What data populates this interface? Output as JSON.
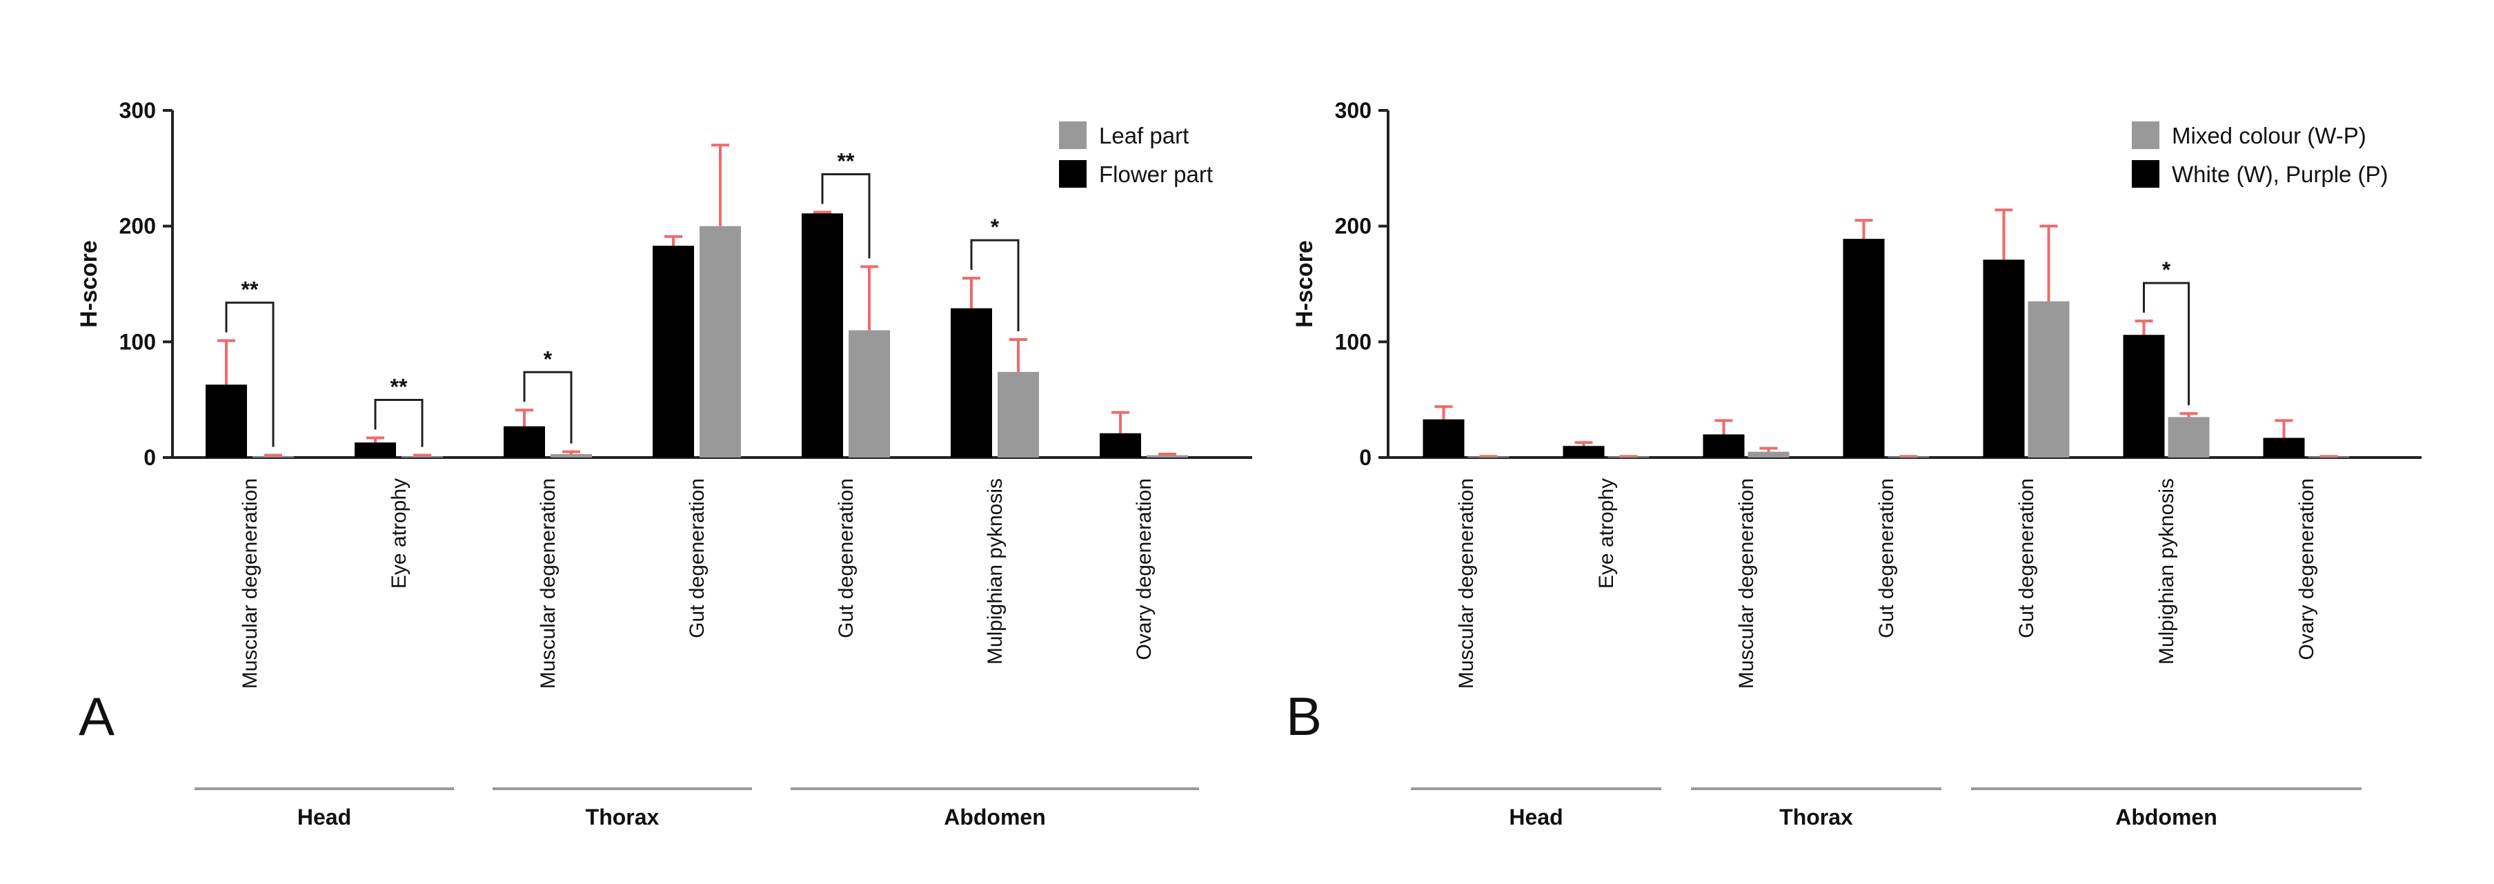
{
  "chart_data": [
    {
      "panel_label": "A",
      "type": "bar",
      "ylabel": "H-score",
      "ylim": [
        0,
        300
      ],
      "yticks": [
        "0",
        "100",
        "200",
        "300"
      ],
      "categories": [
        "Muscular degeneration",
        "Eye atrophy",
        "Muscular degeneration",
        "Gut degeneration",
        "Gut degeneration",
        "Mulpighian pyknosis",
        "Ovary degeneration"
      ],
      "groups": [
        {
          "label": "Head",
          "from": 0,
          "to": 1
        },
        {
          "label": "Thorax",
          "from": 2,
          "to": 3
        },
        {
          "label": "Abdomen",
          "from": 4,
          "to": 6
        }
      ],
      "legend_position": "top-right",
      "series": [
        {
          "name": "Flower part",
          "color": "#000000",
          "values": [
            63,
            13,
            27,
            183,
            211,
            129,
            21
          ],
          "errors": [
            38,
            4,
            14,
            8,
            1,
            26,
            18
          ]
        },
        {
          "name": "Leaf part",
          "color": "#999999",
          "values": [
            1,
            1,
            3,
            200,
            110,
            74,
            2
          ],
          "errors": [
            1,
            1,
            2,
            70,
            55,
            28,
            1
          ]
        }
      ],
      "significance": [
        {
          "category": 0,
          "label": "**"
        },
        {
          "category": 1,
          "label": "**"
        },
        {
          "category": 2,
          "label": "*"
        },
        {
          "category": 4,
          "label": "**"
        },
        {
          "category": 5,
          "label": "*"
        }
      ]
    },
    {
      "panel_label": "B",
      "type": "bar",
      "ylabel": "H-score",
      "ylim": [
        0,
        300
      ],
      "yticks": [
        "0",
        "100",
        "200",
        "300"
      ],
      "categories": [
        "Muscular degeneration",
        "Eye atrophy",
        "Muscular degeneration",
        "Gut degeneration",
        "Gut degeneration",
        "Mulpighian pyknosis",
        "Ovary degeneration"
      ],
      "groups": [
        {
          "label": "Head",
          "from": 0,
          "to": 1
        },
        {
          "label": "Thorax",
          "from": 2,
          "to": 3
        },
        {
          "label": "Abdomen",
          "from": 4,
          "to": 6
        }
      ],
      "legend_position": "top-right",
      "series": [
        {
          "name": "White (W), Purple (P)",
          "color": "#000000",
          "values": [
            33,
            10,
            20,
            189,
            171,
            106,
            17
          ],
          "errors": [
            11,
            3,
            12,
            16,
            43,
            12,
            15
          ]
        },
        {
          "name": "Mixed colour (W-P)",
          "color": "#999999",
          "values": [
            0,
            0,
            5,
            0,
            135,
            35,
            0
          ],
          "errors": [
            1,
            1,
            3,
            1,
            65,
            3,
            1
          ]
        }
      ],
      "significance": [
        {
          "category": 5,
          "label": "*"
        }
      ]
    }
  ]
}
